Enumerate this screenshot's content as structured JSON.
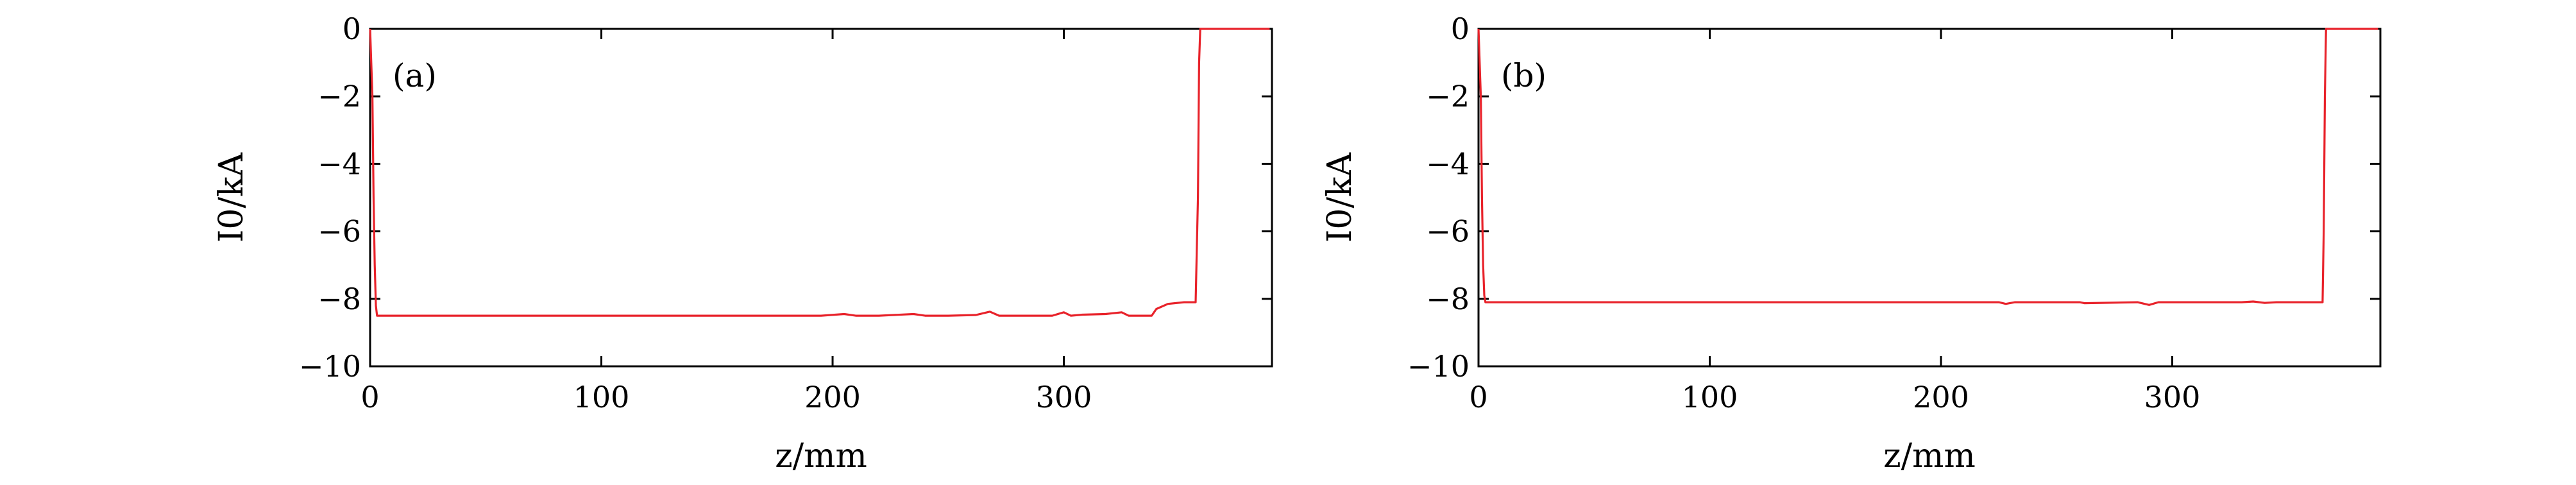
{
  "chart_data": [
    {
      "type": "line",
      "panel_label": "(a)",
      "xlabel": "z/mm",
      "ylabel": "I0/kA",
      "xlim": [
        0,
        390
      ],
      "ylim": [
        -10,
        0
      ],
      "xticks": [
        0,
        100,
        200,
        300
      ],
      "yticks": [
        0,
        -2,
        -4,
        -6,
        -8,
        -10
      ],
      "xtick_labels": [
        "0",
        "100",
        "200",
        "300"
      ],
      "ytick_labels": [
        "0",
        "−2",
        "−4",
        "−6",
        "−8",
        "−10"
      ],
      "grid": false,
      "series": [
        {
          "color": "#e8222a",
          "x": [
            0,
            1,
            1.5,
            2,
            2.5,
            3,
            4,
            50,
            100,
            150,
            195,
            205,
            210,
            220,
            235,
            240,
            250,
            262,
            268,
            272,
            280,
            295,
            300,
            303,
            308,
            318,
            325,
            328,
            338,
            340,
            345,
            352,
            357,
            358,
            358.5,
            359,
            389
          ],
          "y": [
            0,
            -2,
            -5,
            -7,
            -8.2,
            -8.5,
            -8.5,
            -8.5,
            -8.5,
            -8.5,
            -8.5,
            -8.45,
            -8.5,
            -8.5,
            -8.45,
            -8.5,
            -8.5,
            -8.48,
            -8.38,
            -8.5,
            -8.5,
            -8.5,
            -8.4,
            -8.5,
            -8.47,
            -8.45,
            -8.4,
            -8.5,
            -8.5,
            -8.3,
            -8.15,
            -8.1,
            -8.1,
            -5,
            -1,
            0,
            0
          ]
        }
      ]
    },
    {
      "type": "line",
      "panel_label": "(b)",
      "xlabel": "z/mm",
      "ylabel": "I0/kA",
      "xlim": [
        0,
        390
      ],
      "ylim": [
        -10,
        0
      ],
      "xticks": [
        0,
        100,
        200,
        300
      ],
      "yticks": [
        0,
        -2,
        -4,
        -6,
        -8,
        -10
      ],
      "xtick_labels": [
        "0",
        "100",
        "200",
        "300"
      ],
      "ytick_labels": [
        "0",
        "−2",
        "−4",
        "−6",
        "−8",
        "−10"
      ],
      "grid": false,
      "series": [
        {
          "color": "#e8222a",
          "x": [
            0,
            1,
            1.5,
            2,
            2.5,
            3,
            4,
            100,
            200,
            225,
            228,
            232,
            260,
            262,
            285,
            290,
            294,
            300,
            330,
            335,
            340,
            345,
            355,
            365,
            365.5,
            366,
            366.5,
            389
          ],
          "y": [
            0,
            -2,
            -5,
            -7,
            -7.9,
            -8.1,
            -8.1,
            -8.1,
            -8.1,
            -8.1,
            -8.15,
            -8.1,
            -8.1,
            -8.13,
            -8.1,
            -8.18,
            -8.1,
            -8.1,
            -8.1,
            -8.08,
            -8.12,
            -8.1,
            -8.1,
            -8.1,
            -6,
            -2,
            0,
            0
          ]
        }
      ]
    }
  ]
}
